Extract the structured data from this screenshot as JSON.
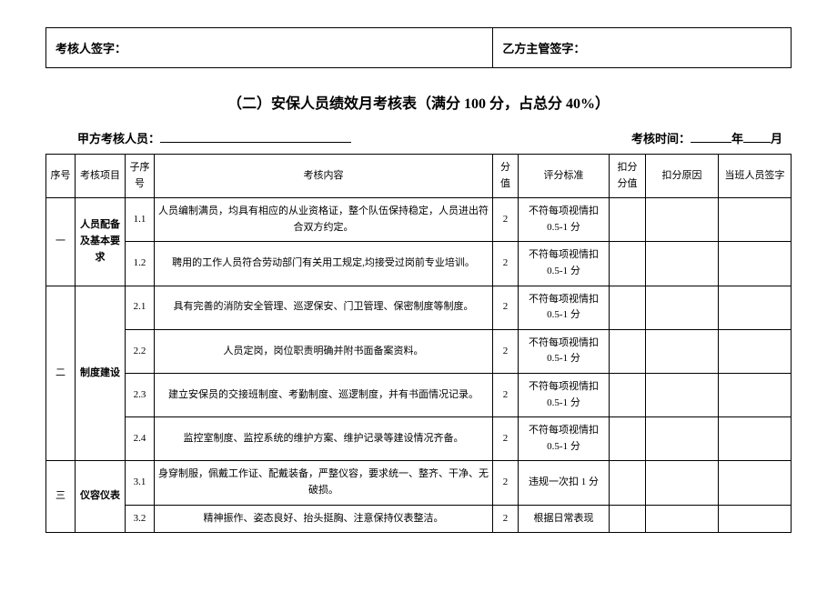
{
  "signatures": {
    "examiner_label": "考核人签字：",
    "supervisor_label": "乙方主管签字："
  },
  "title": "（二）安保人员绩效月考核表（满分 100 分，占总分 40%）",
  "header": {
    "staff_label": "甲方考核人员：",
    "time_label": "考核时间：",
    "year_suffix": "年",
    "month_suffix": "月"
  },
  "columns": {
    "seq": "序号",
    "item": "考核项目",
    "sub": "子序号",
    "content": "考核内容",
    "score": "分值",
    "standard": "评分标准",
    "deduct": "扣分分值",
    "reason": "扣分原因",
    "sign": "当班人员签字"
  },
  "rows": [
    {
      "seq": "一",
      "item": "人员配备及基本要求",
      "subs": [
        {
          "sub": "1.1",
          "content": "人员编制满员，均具有相应的从业资格证，整个队伍保持稳定，人员进出符合双方约定。",
          "score": "2",
          "standard": "不符每项视情扣0.5-1 分"
        },
        {
          "sub": "1.2",
          "content": "聘用的工作人员符合劳动部门有关用工规定,均接受过岗前专业培训。",
          "score": "2",
          "standard": "不符每项视情扣0.5-1 分"
        }
      ]
    },
    {
      "seq": "二",
      "item": "制度建设",
      "subs": [
        {
          "sub": "2.1",
          "content": "具有完善的消防安全管理、巡逻保安、门卫管理、保密制度等制度。",
          "score": "2",
          "standard": "不符每项视情扣0.5-1 分"
        },
        {
          "sub": "2.2",
          "content": "人员定岗，岗位职责明确并附书面备案资料。",
          "score": "2",
          "standard": "不符每项视情扣0.5-1 分"
        },
        {
          "sub": "2.3",
          "content": "建立安保员的交接班制度、考勤制度、巡逻制度，并有书面情况记录。",
          "score": "2",
          "standard": "不符每项视情扣0.5-1 分"
        },
        {
          "sub": "2.4",
          "content": "监控室制度、监控系统的维护方案、维护记录等建设情况齐备。",
          "score": "2",
          "standard": "不符每项视情扣0.5-1 分"
        }
      ]
    },
    {
      "seq": "三",
      "item": "仪容仪表",
      "subs": [
        {
          "sub": "3.1",
          "content": "身穿制服，佩戴工作证、配戴装备，严整仪容，要求统一、整齐、干净、无破损。",
          "score": "2",
          "standard": "违规一次扣 1 分"
        },
        {
          "sub": "3.2",
          "content": "精神振作、姿态良好、抬头挺胸、注意保持仪表整洁。",
          "score": "2",
          "standard": "根据日常表现"
        }
      ]
    }
  ]
}
